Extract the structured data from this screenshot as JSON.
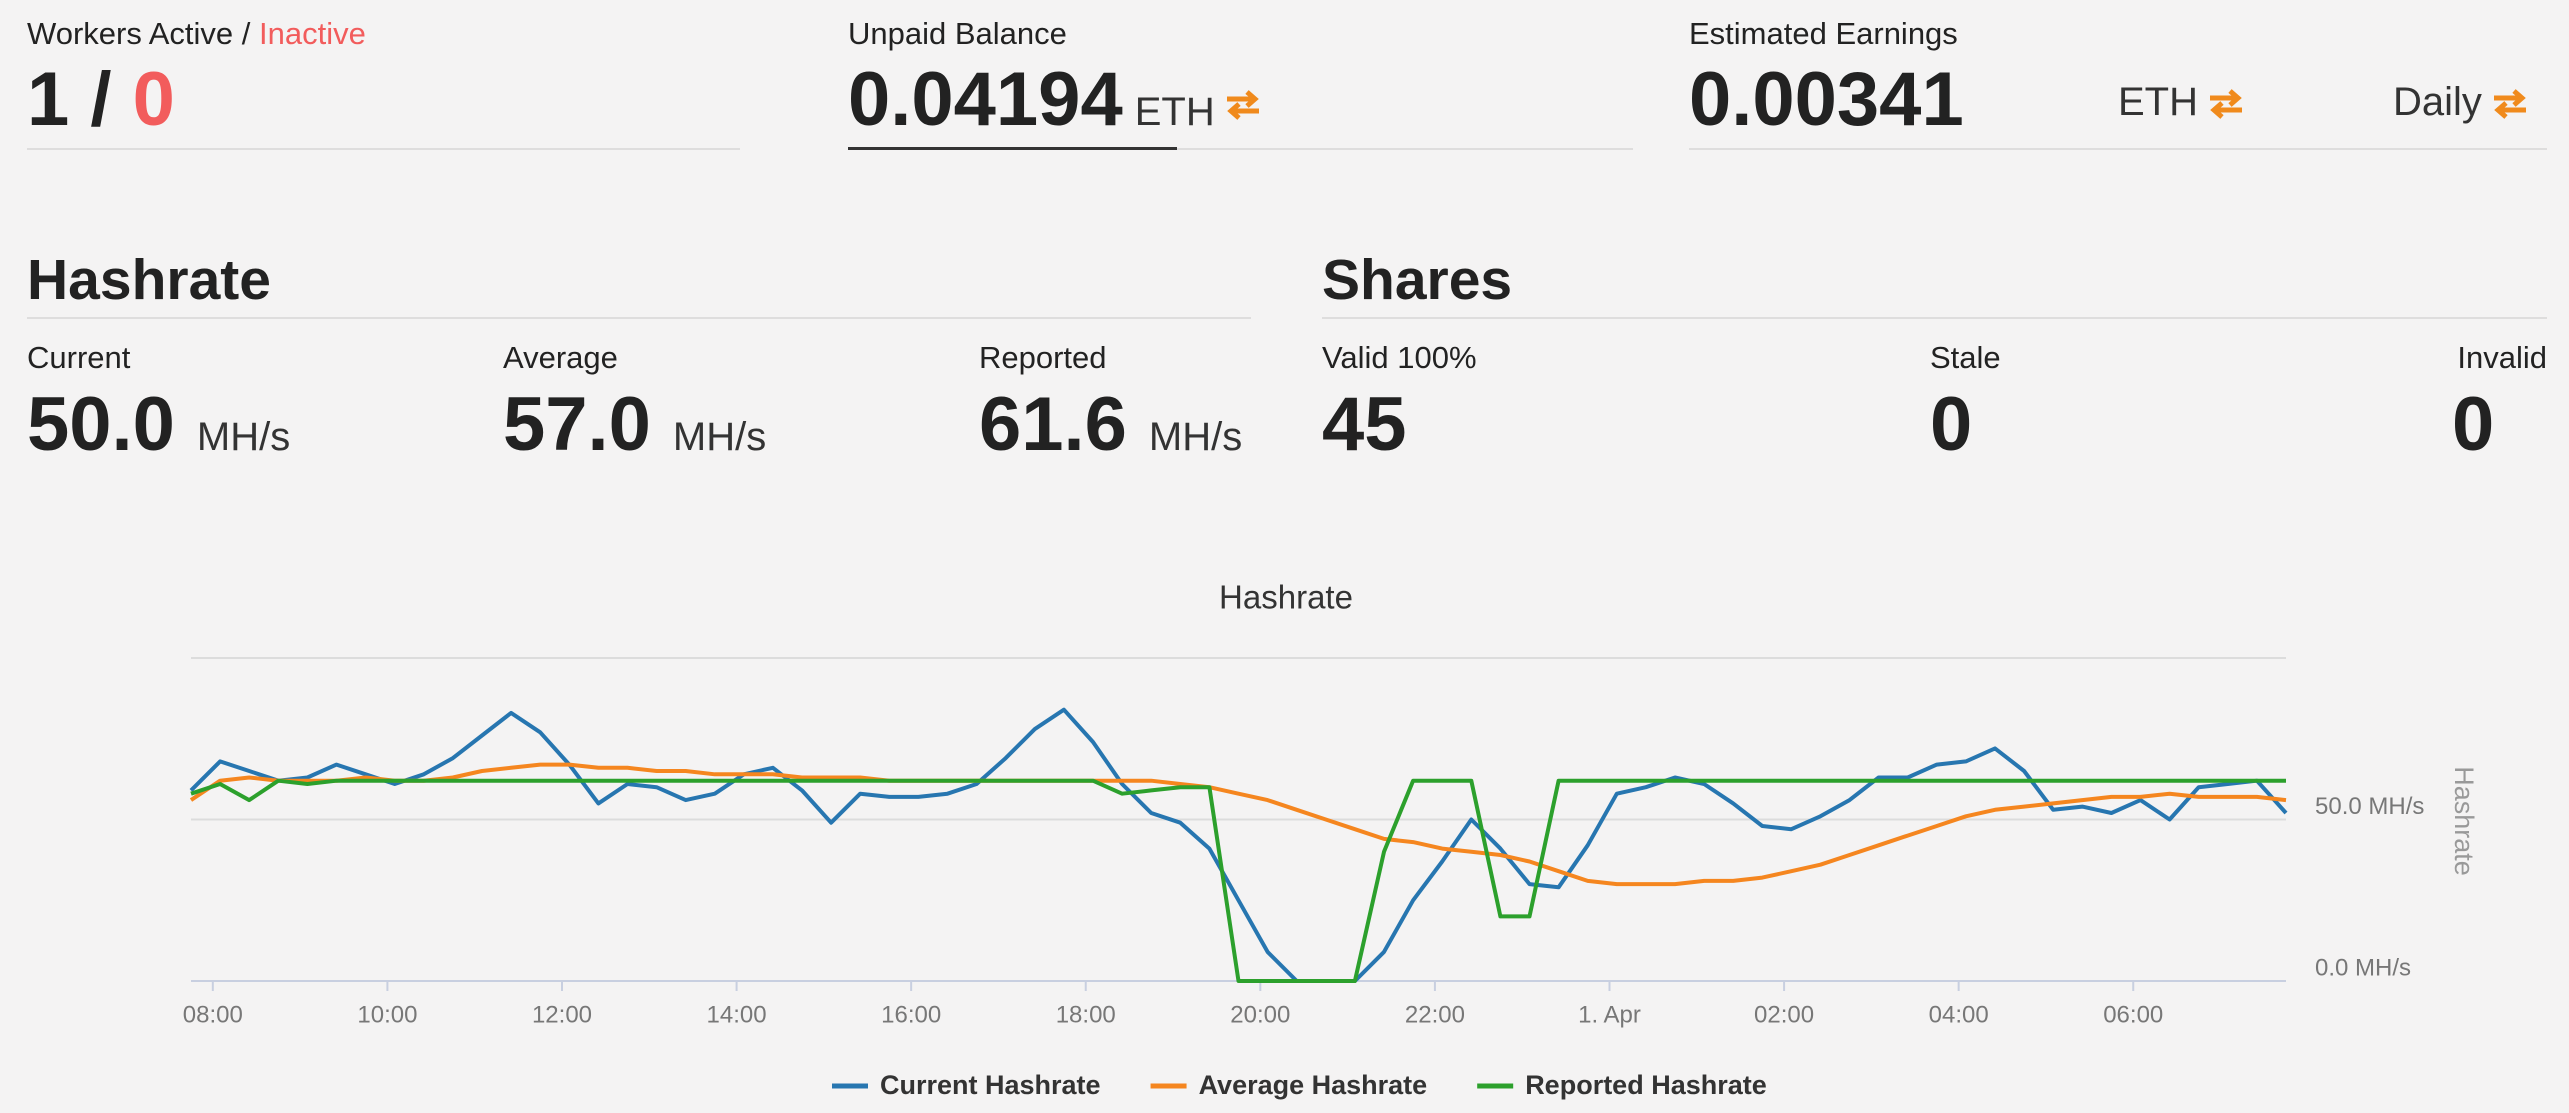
{
  "workers": {
    "label": "Workers Active",
    "separator": "/",
    "inactive_label": "Inactive",
    "active": 1,
    "inactive": 0
  },
  "unpaid_balance": {
    "label": "Unpaid Balance",
    "value": 0.04194,
    "unit": "ETH"
  },
  "estimated_earnings": {
    "label": "Estimated Earnings",
    "value": 0.00341,
    "unit": "ETH",
    "period": "Daily"
  },
  "hashrate": {
    "title": "Hashrate",
    "unit": "MH/s",
    "current": {
      "label": "Current",
      "value": "50.0"
    },
    "average": {
      "label": "Average",
      "value": "57.0"
    },
    "reported": {
      "label": "Reported",
      "value": "61.6"
    }
  },
  "shares": {
    "title": "Shares",
    "valid": {
      "label": "Valid 100%",
      "value": 45
    },
    "stale": {
      "label": "Stale",
      "value": 0
    },
    "invalid": {
      "label": "Invalid",
      "value": 0
    }
  },
  "chart_data": {
    "type": "line",
    "title": "Hashrate",
    "y_axis_label": "Hashrate",
    "x": [
      465,
      485,
      505,
      525,
      545,
      565,
      585,
      605,
      625,
      645,
      665,
      685,
      705,
      725,
      745,
      765,
      785,
      805,
      825,
      845,
      865,
      885,
      905,
      925,
      945,
      965,
      985,
      1005,
      1025,
      1045,
      1065,
      1085,
      1105,
      1125,
      1145,
      1165,
      1185,
      1205,
      1225,
      1245,
      1265,
      1285,
      1305,
      1325,
      1345,
      1365,
      1385,
      1405,
      1425,
      1445,
      1465,
      1485,
      1505,
      1525,
      1545,
      1565,
      1585,
      1605,
      1625,
      1645,
      1665,
      1685,
      1705,
      1725,
      1745,
      1765,
      1785,
      1805,
      1825,
      1845,
      1865,
      1885,
      1905
    ],
    "xlim": [
      465,
      1905
    ],
    "xticks": [
      {
        "value": 480,
        "label": "08:00"
      },
      {
        "value": 600,
        "label": "10:00"
      },
      {
        "value": 720,
        "label": "12:00"
      },
      {
        "value": 840,
        "label": "14:00"
      },
      {
        "value": 960,
        "label": "16:00"
      },
      {
        "value": 1080,
        "label": "18:00"
      },
      {
        "value": 1200,
        "label": "20:00"
      },
      {
        "value": 1320,
        "label": "22:00"
      },
      {
        "value": 1440,
        "label": "1. Apr"
      },
      {
        "value": 1560,
        "label": "02:00"
      },
      {
        "value": 1680,
        "label": "04:00"
      },
      {
        "value": 1800,
        "label": "06:00"
      }
    ],
    "ylim": [
      0,
      100
    ],
    "yticks": [
      {
        "value": 0,
        "label": "0.0 MH/s"
      },
      {
        "value": 50,
        "label": "50.0 MH/s"
      }
    ],
    "grid": true,
    "series": [
      {
        "name": "Current Hashrate",
        "color": "#2776b0",
        "values": [
          59,
          68,
          65,
          62,
          63,
          67,
          64,
          61,
          64,
          69,
          76,
          83,
          77,
          67,
          55,
          61,
          60,
          56,
          58,
          64,
          66,
          59,
          49,
          58,
          57,
          57,
          58,
          61,
          69,
          78,
          84,
          74,
          61,
          52,
          49,
          41,
          25,
          9,
          0,
          0,
          0,
          9,
          25,
          37,
          50,
          41,
          30,
          29,
          42,
          58,
          60,
          63,
          61,
          55,
          48,
          47,
          51,
          56,
          63,
          63,
          67,
          68,
          72,
          65,
          53,
          54,
          52,
          56,
          50,
          60,
          61,
          62,
          52
        ]
      },
      {
        "name": "Average Hashrate",
        "color": "#f5861f",
        "values": [
          56,
          62,
          63,
          62,
          62,
          62,
          63,
          62,
          62,
          63,
          65,
          66,
          67,
          67,
          66,
          66,
          65,
          65,
          64,
          64,
          64,
          63,
          63,
          63,
          62,
          62,
          62,
          62,
          62,
          62,
          62,
          62,
          62,
          62,
          61,
          60,
          58,
          56,
          53,
          50,
          47,
          44,
          43,
          41,
          40,
          39,
          37,
          34,
          31,
          30,
          30,
          30,
          31,
          31,
          32,
          34,
          36,
          39,
          42,
          45,
          48,
          51,
          53,
          54,
          55,
          56,
          57,
          57,
          58,
          57,
          57,
          57,
          56
        ]
      },
      {
        "name": "Reported Hashrate",
        "color": "#2ca02c",
        "values": [
          58,
          61,
          56,
          62,
          61,
          62,
          62,
          62,
          62,
          62,
          62,
          62,
          62,
          62,
          62,
          62,
          62,
          62,
          62,
          62,
          62,
          62,
          62,
          62,
          62,
          62,
          62,
          62,
          62,
          62,
          62,
          62,
          58,
          59,
          60,
          60,
          0,
          0,
          0,
          0,
          0,
          40,
          62,
          62,
          62,
          20,
          20,
          62,
          62,
          62,
          62,
          62,
          62,
          62,
          62,
          62,
          62,
          62,
          62,
          62,
          62,
          62,
          62,
          62,
          62,
          62,
          62,
          62,
          62,
          62,
          62,
          62,
          62
        ]
      }
    ]
  }
}
